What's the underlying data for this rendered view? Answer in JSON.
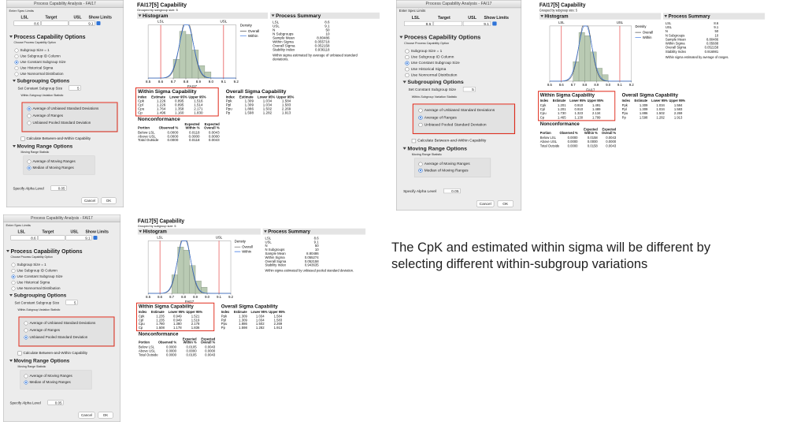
{
  "dialog": {
    "title": "Process Capability Analysis - FAI17",
    "spec_label": "Enter Spec Limits",
    "spec_headers": [
      "LSL",
      "Target",
      "USL",
      "Show Limits"
    ],
    "lsl": "8.6",
    "usl": "9.1",
    "capability_options": "Process Capability Options",
    "choose_label": "Choose Process Capability Option",
    "capability_choices": [
      "Subgroup Size = 1",
      "Use Subgroup ID Column",
      "Use Constant Subgroup Size",
      "Use Historical Sigma",
      "Use Nonnormal Distribution"
    ],
    "capability_selected": 2,
    "subgrouping_options": "Subgrouping Options",
    "subgroup_size_label": "Set Constant Subgroup Size",
    "subgroup_size": "5",
    "within_label": "Within-Subgroup Variation Statistic",
    "within_choices": [
      "Average of Unbiased Standard Deviations",
      "Average of Ranges",
      "Unbiased Pooled Standard Deviation"
    ],
    "calc_label": "Calculate Between-and-Within Capability",
    "moving_range_options": "Moving Range Options",
    "moving_statistic_label": "Moving Range Statistic",
    "moving_choices": [
      "Average of Moving Ranges",
      "Median of Moving Ranges"
    ],
    "moving_selected": 1,
    "alpha_label": "Specify Alpha Level",
    "alpha": "0.05",
    "buttons": [
      "Cancel",
      "OK"
    ]
  },
  "report": {
    "title": "FAI17[5] Capability",
    "subtitle": "Grouped by subgroup size: 5",
    "histogram_title": "Histogram",
    "lsl_label": "LSL",
    "usl_label": "USL",
    "legend_title": "Density",
    "legend": [
      "Overall",
      "Within"
    ],
    "xticks": [
      8.5,
      8.6,
      8.7,
      8.8,
      8.9,
      {
        "value": 9,
        "label": "9.0"
      },
      9.1,
      9.2
    ],
    "xlabel": "FAI17",
    "bins": [
      8.7,
      8.75,
      8.8,
      8.85,
      8.9,
      8.95,
      9.0
    ],
    "counts": [
      6,
      15,
      14,
      9,
      4,
      2
    ],
    "summary_title": "Process Summary",
    "summary_labels": [
      "LSL",
      "USL",
      "N",
      "N Subgroups",
      "Sample Mean",
      "Within Sigma",
      "Overall Sigma",
      "Stability Index"
    ],
    "within_title": "Within Sigma Capability",
    "overall_title": "Overall Sigma Capability",
    "cap_headers": [
      "Index",
      "Estimate",
      "Lower 95%",
      "Upper 95%"
    ],
    "overall_rows": [
      [
        "Ppk",
        "1.309",
        "1.034",
        "1.584"
      ],
      [
        "Ppl",
        "1.309",
        "1.034",
        "1.583"
      ],
      [
        "Ppu",
        "1.886",
        "1.502",
        "2.269"
      ],
      [
        "Pp",
        "1.598",
        "1.282",
        "1.913"
      ]
    ],
    "nonconf_title": "Nonconformance",
    "nonconf_headers": [
      "Portion",
      "Observed %",
      "Expected Within %",
      "Expected Overall %"
    ],
    "nonconf_labels": [
      "Below LSL",
      "Above USL",
      "Total Outside"
    ]
  },
  "panels": [
    {
      "within_selected": 0,
      "summary_values": [
        "8.6",
        "9.1",
        "50",
        "10",
        "8.80486",
        "0.055718",
        "0.052158",
        "0.936118"
      ],
      "note": "Within sigma estimated by average of unbiased standard deviations.",
      "within_rows": [
        [
          "Cpk",
          "1.226",
          "0.895",
          "1.516"
        ],
        [
          "Cpl",
          "1.226",
          "0.895",
          "1.514"
        ],
        [
          "Cpu",
          "1.764",
          "1.358",
          "2.171"
        ],
        [
          "Cp",
          "1.496",
          "1.160",
          "1.830"
        ]
      ],
      "nonconf_rows": [
        [
          "0.0000",
          "0.0118",
          "0.0043"
        ],
        [
          "0.0000",
          "0.0000",
          "0.0000"
        ],
        [
          "0.0000",
          "0.0118",
          "0.0043"
        ]
      ]
    },
    {
      "within_selected": 1,
      "summary_values": [
        "8.6",
        "9.1",
        "50",
        "10",
        "8.80486",
        "0.05688",
        "0.052158",
        "0.916981"
      ],
      "note": "Within sigma estimated by average of ranges.",
      "within_rows": [
        [
          "Cpk",
          "1.201",
          "0.910",
          "1.491"
        ],
        [
          "Cpl",
          "1.201",
          "0.910",
          "1.489"
        ],
        [
          "Cpu",
          "1.730",
          "1.323",
          "2.134"
        ],
        [
          "Cp",
          "1.465",
          "1.130",
          "1.799"
        ]
      ],
      "nonconf_rows": [
        [
          "0.0000",
          "0.0158",
          "0.0043"
        ],
        [
          "0.0000",
          "0.0000",
          "0.0000"
        ],
        [
          "0.0000",
          "0.0158",
          "0.0043"
        ]
      ]
    },
    {
      "within_selected": 2,
      "summary_values": [
        "8.6",
        "9.1",
        "50",
        "10",
        "8.80486",
        "0.055274",
        "0.052158",
        "0.943635"
      ],
      "note": "Within sigma estimated by unbiased pooled standard deviation.",
      "within_rows": [
        [
          "Cpk",
          "1.235",
          "0.949",
          "1.521"
        ],
        [
          "Cpl",
          "1.235",
          "0.949",
          "1.519"
        ],
        [
          "Cpu",
          "1.780",
          "1.380",
          "2.178"
        ],
        [
          "Cp",
          "1.508",
          "1.178",
          "1.836"
        ]
      ],
      "nonconf_rows": [
        [
          "0.0000",
          "0.0105",
          "0.0043"
        ],
        [
          "0.0000",
          "0.0000",
          "0.0000"
        ],
        [
          "0.0000",
          "0.0105",
          "0.0043"
        ]
      ]
    }
  ],
  "annotation": "The CpK and estimated within sigma will be different by selecting different within-subgroup variations"
}
